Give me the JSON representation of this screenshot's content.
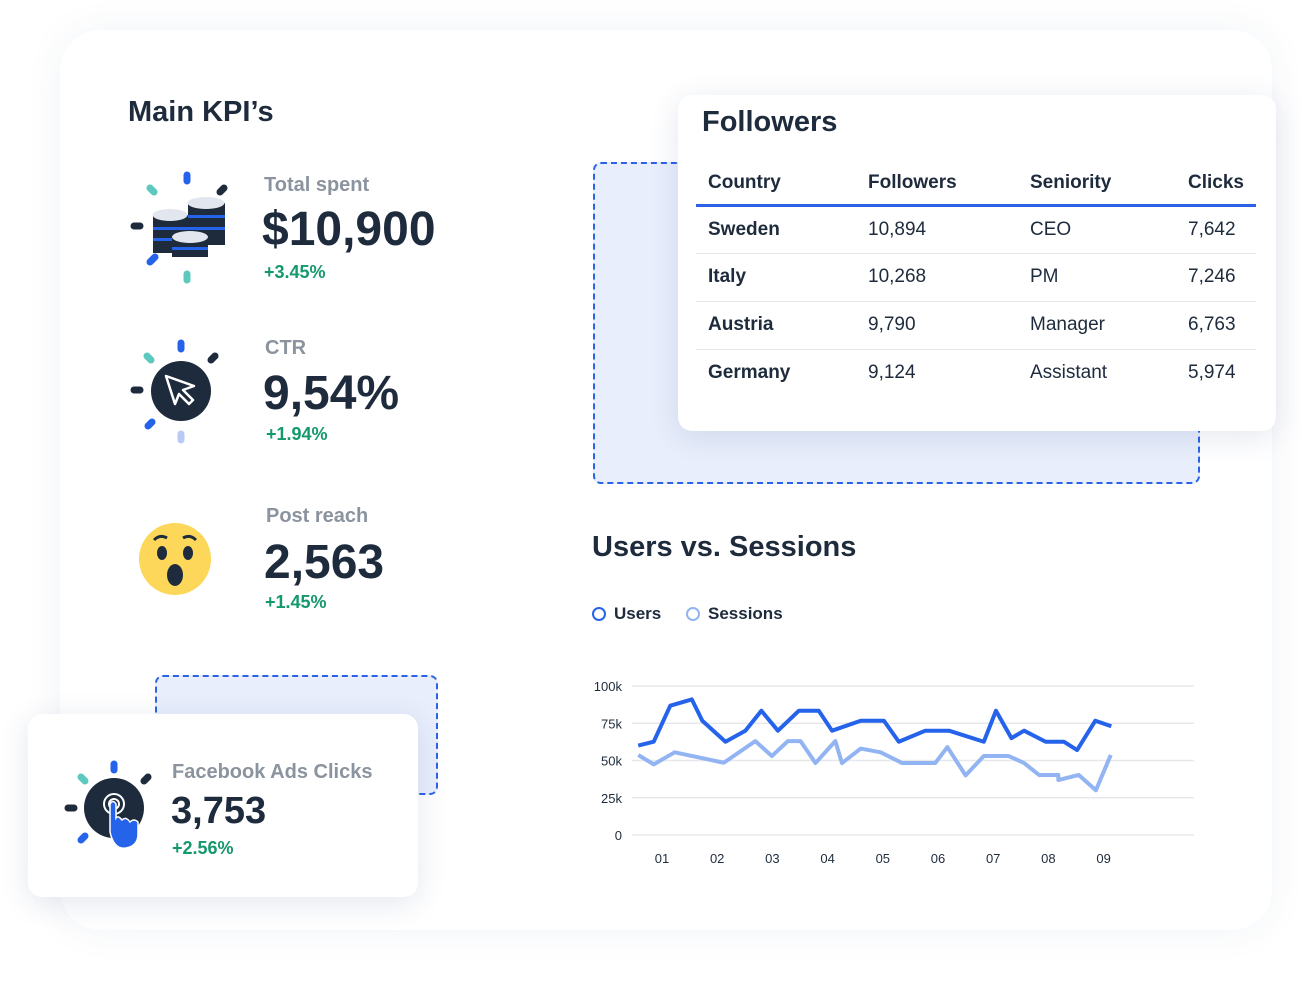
{
  "kpi": {
    "title": "Main KPI’s",
    "items": [
      {
        "label": "Total spent",
        "value": "$10,900",
        "change": "+3.45%",
        "icon": "coins-icon"
      },
      {
        "label": "CTR",
        "value": "9,54%",
        "change": "+1.94%",
        "icon": "cursor-icon"
      },
      {
        "label": "Post reach",
        "value": "2,563",
        "change": "+1.45%",
        "icon": "surprised-emoji-icon"
      },
      {
        "label": "Facebook Ads Clicks",
        "value": "3,753",
        "change": "+2.56%",
        "icon": "tap-hand-icon"
      }
    ]
  },
  "followers": {
    "title": "Followers",
    "headers": [
      "Country",
      "Followers",
      "Seniority",
      "Clicks"
    ],
    "rows": [
      [
        "Sweden",
        "10,894",
        "CEO",
        "7,642"
      ],
      [
        "Italy",
        "10,268",
        "PM",
        "7,246"
      ],
      [
        "Austria",
        "9,790",
        "Manager",
        "6,763"
      ],
      [
        "Germany",
        "9,124",
        "Assistant",
        "5,974"
      ]
    ]
  },
  "colors": {
    "users": "#2563eb",
    "sessions": "#93b4f3",
    "positive": "#14996b"
  },
  "chart_data": {
    "type": "line",
    "title": "Users vs. Sessions",
    "ylim": [
      0,
      100000
    ],
    "yticks": [
      "0",
      "25k",
      "50k",
      "75k",
      "100k"
    ],
    "ytick_values": [
      0,
      25000,
      50000,
      75000,
      100000
    ],
    "categories": [
      "01",
      "02",
      "03",
      "04",
      "05",
      "06",
      "07",
      "08",
      "09"
    ],
    "grid": true,
    "legend": "top-left",
    "series": [
      {
        "name": "Users",
        "points": [
          [
            0.57,
            60000
          ],
          [
            0.85,
            62600
          ],
          [
            1.15,
            86800
          ],
          [
            1.54,
            91000
          ],
          [
            1.73,
            76700
          ],
          [
            2.15,
            62600
          ],
          [
            2.51,
            70000
          ],
          [
            2.8,
            83400
          ],
          [
            3.1,
            70000
          ],
          [
            3.48,
            83400
          ],
          [
            3.84,
            83400
          ],
          [
            4.08,
            70000
          ],
          [
            4.6,
            76700
          ],
          [
            5.02,
            76700
          ],
          [
            5.29,
            62600
          ],
          [
            5.77,
            70000
          ],
          [
            6.2,
            70000
          ],
          [
            6.83,
            62600
          ],
          [
            7.05,
            83400
          ],
          [
            7.33,
            65000
          ],
          [
            7.56,
            70000
          ],
          [
            7.95,
            62600
          ],
          [
            8.28,
            62600
          ],
          [
            8.52,
            57000
          ],
          [
            8.85,
            76700
          ],
          [
            9.14,
            73000
          ]
        ]
      },
      {
        "name": "Sessions",
        "points": [
          [
            0.57,
            53700
          ],
          [
            0.85,
            47400
          ],
          [
            1.23,
            55500
          ],
          [
            2.12,
            48500
          ],
          [
            2.69,
            63000
          ],
          [
            2.99,
            53000
          ],
          [
            3.28,
            63000
          ],
          [
            3.51,
            63000
          ],
          [
            3.78,
            48300
          ],
          [
            4.14,
            63000
          ],
          [
            4.26,
            48300
          ],
          [
            4.6,
            58000
          ],
          [
            4.96,
            55500
          ],
          [
            5.35,
            48300
          ],
          [
            5.95,
            48300
          ],
          [
            6.17,
            59000
          ],
          [
            6.5,
            40000
          ],
          [
            6.83,
            53000
          ],
          [
            7.28,
            53000
          ],
          [
            7.56,
            48300
          ],
          [
            7.83,
            40300
          ],
          [
            8.18,
            40300
          ],
          [
            8.18,
            36900
          ],
          [
            8.55,
            40300
          ],
          [
            8.86,
            30000
          ],
          [
            9.13,
            53700
          ]
        ]
      }
    ]
  }
}
